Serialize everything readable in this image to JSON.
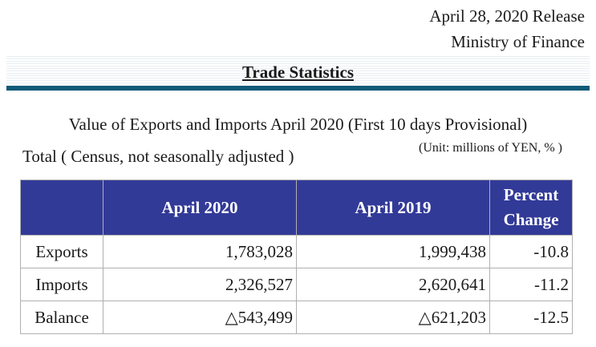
{
  "header": {
    "release_date": "April 28, 2020 Release",
    "ministry": "Ministry of Finance",
    "section_title": "Trade Statistics"
  },
  "table_title": "Value of Exports and Imports April 2020 (First 10 days Provisional)",
  "subtitle": "Total ( Census, not seasonally adjusted )",
  "unit_note": "(Unit: millions of YEN, % )",
  "table": {
    "columns": [
      "",
      "April 2020",
      "April 2019",
      "Percent Change"
    ],
    "rows": [
      {
        "label": "Exports",
        "apr_2020": "1,783,028",
        "apr_2019": "1,999,438",
        "pct_change": "-10.8"
      },
      {
        "label": "Imports",
        "apr_2020": "2,326,527",
        "apr_2019": "2,620,641",
        "pct_change": "-11.2"
      },
      {
        "label": "Balance",
        "apr_2020": "△543,499",
        "apr_2019": "△621,203",
        "pct_change": "-12.5"
      }
    ]
  },
  "colors": {
    "header_fill": "#323a98",
    "title_rule": "#0d5a78"
  }
}
